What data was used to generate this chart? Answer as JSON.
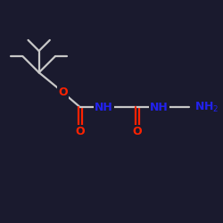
{
  "bg": "#1a1a2e",
  "lc": "#c8c8c8",
  "oc": "#ff2200",
  "nc": "#2222ee",
  "lw": 1.6,
  "fs": 8.5,
  "figsize": [
    2.5,
    2.5
  ],
  "dpi": 100,
  "xlim": [
    0,
    10
  ],
  "ylim": [
    0,
    10
  ],
  "tbu_x": 1.8,
  "tbu_y": 6.8,
  "chain_y": 5.2,
  "o1_x": 2.9,
  "o1_y": 5.9,
  "c1_x": 3.7,
  "c1_y": 5.2,
  "nh1_x": 4.8,
  "nh1_y": 5.2,
  "ch2a_x": 5.6,
  "ch2a_y": 5.2,
  "c2_x": 6.35,
  "c2_y": 5.2,
  "nh2_x": 7.35,
  "nh2_y": 5.2,
  "ch2b_x": 8.1,
  "ch2b_y": 5.2,
  "nh3_x": 8.85,
  "nh3_y": 5.2
}
